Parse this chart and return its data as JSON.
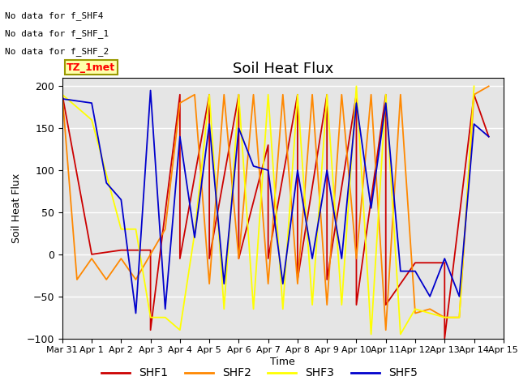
{
  "title": "Soil Heat Flux",
  "ylabel": "Soil Heat Flux",
  "xlabel": "Time",
  "ylim": [
    -100,
    210
  ],
  "annotations": [
    "No data for f_SHF4",
    "No data for f_SHF_1",
    "No data for f_SHF_2"
  ],
  "tz_label": "TZ_1met",
  "xtick_labels": [
    "Mar 31",
    "Apr 1",
    "Apr 2",
    "Apr 3",
    "Apr 4",
    "Apr 5",
    "Apr 6",
    "Apr 7",
    "Apr 8",
    "Apr 9",
    "Apr 10",
    "Apr 11",
    "Apr 12",
    "Apr 13",
    "Apr 14",
    "Apr 15"
  ],
  "ytick_vals": [
    -100,
    -50,
    0,
    50,
    100,
    150,
    200
  ],
  "series": {
    "SHF1": {
      "color": "#CC0000",
      "x": [
        0,
        1,
        2,
        3,
        3,
        4,
        4,
        5,
        5,
        6,
        6,
        7,
        7,
        8,
        8,
        9,
        9,
        10,
        10,
        11,
        11,
        12,
        12.5,
        13,
        13,
        14,
        14.5
      ],
      "y": [
        190,
        0,
        5,
        5,
        -90,
        190,
        -5,
        190,
        -5,
        190,
        -5,
        130,
        -5,
        190,
        -30,
        190,
        -30,
        190,
        -60,
        190,
        -60,
        -10,
        -10,
        -10,
        -100,
        190,
        140
      ]
    },
    "SHF2": {
      "color": "#FF8800",
      "x": [
        0,
        0.5,
        1,
        1.5,
        2,
        2.5,
        3,
        3.5,
        4,
        4.5,
        5,
        5.5,
        6,
        6.5,
        7,
        7.5,
        8,
        8.5,
        9,
        9.5,
        10,
        10.5,
        11,
        11.5,
        12,
        12.5,
        13,
        13.5,
        14,
        14.5
      ],
      "y": [
        190,
        -30,
        -5,
        -30,
        -5,
        -30,
        0,
        30,
        180,
        190,
        -35,
        190,
        -5,
        190,
        -35,
        190,
        -35,
        190,
        -60,
        190,
        -5,
        190,
        -90,
        190,
        -70,
        -65,
        -75,
        -75,
        190,
        200
      ]
    },
    "SHF3": {
      "color": "#FFFF00",
      "x": [
        0,
        1,
        2,
        2.5,
        3,
        3.5,
        4,
        4.5,
        5,
        5.5,
        6,
        6.5,
        7,
        7.5,
        8,
        8.5,
        9,
        9.5,
        10,
        10.5,
        11,
        11.5,
        12,
        12.5,
        13,
        13.5,
        14
      ],
      "y": [
        190,
        160,
        30,
        30,
        -75,
        -75,
        -90,
        25,
        190,
        -65,
        190,
        -65,
        190,
        -65,
        190,
        -60,
        190,
        -60,
        200,
        -95,
        190,
        -95,
        -65,
        -70,
        -75,
        -75,
        200
      ]
    },
    "SHF5": {
      "color": "#0000CC",
      "x": [
        0,
        1,
        1.5,
        2,
        2.5,
        3,
        3.5,
        4,
        4.5,
        5,
        5.5,
        6,
        6.5,
        7,
        7.5,
        8,
        8.5,
        9,
        9.5,
        10,
        10.5,
        11,
        11.5,
        12,
        12.5,
        13,
        13.5,
        14,
        14.5
      ],
      "y": [
        185,
        180,
        85,
        65,
        -70,
        195,
        -65,
        140,
        20,
        155,
        -35,
        150,
        105,
        100,
        -35,
        100,
        -5,
        100,
        -5,
        180,
        55,
        180,
        -20,
        -20,
        -50,
        -5,
        -50,
        155,
        140
      ]
    }
  },
  "plot_bg": "#E5E5E5",
  "grid_color": "white",
  "legend_items": [
    "SHF1",
    "SHF2",
    "SHF3",
    "SHF5"
  ],
  "legend_colors": [
    "#CC0000",
    "#FF8800",
    "#FFFF00",
    "#0000CC"
  ]
}
